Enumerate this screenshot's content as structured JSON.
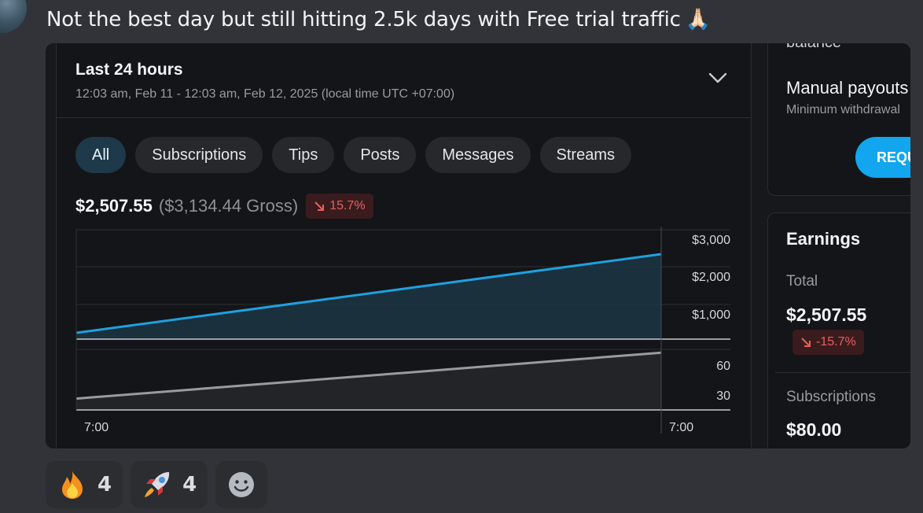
{
  "message": {
    "text": "Not the best day but still hitting 2.5k days with Free trial traffic",
    "emoji": "🙏🏻"
  },
  "earnings_panel": {
    "period_title": "Last 24 hours",
    "period_range": "12:03 am, Feb 11 - 12:03 am, Feb 12, 2025 (local time UTC +07:00)",
    "tabs": [
      {
        "label": "All",
        "active": true
      },
      {
        "label": "Subscriptions",
        "active": false
      },
      {
        "label": "Tips",
        "active": false
      },
      {
        "label": "Posts",
        "active": false
      },
      {
        "label": "Messages",
        "active": false
      },
      {
        "label": "Streams",
        "active": false
      }
    ],
    "net": "$2,507.55",
    "gross": "($3,134.44 Gross)",
    "change": "15.7%"
  },
  "chart_data": [
    {
      "type": "area",
      "series": [
        {
          "x": [
            "7:00",
            "7:00"
          ],
          "values": [
            180,
            2600
          ]
        }
      ],
      "y_ticks": [
        "$3,000",
        "$2,000",
        "$1,000"
      ],
      "ylim": [
        0,
        3000
      ],
      "color": "#1ea1e0"
    },
    {
      "type": "area",
      "series": [
        {
          "x": [
            "7:00",
            "7:00"
          ],
          "values": [
            18,
            91
          ]
        }
      ],
      "y_ticks": [
        "60",
        "30"
      ],
      "ylim": [
        0,
        100
      ],
      "color": "#9a9aa0"
    }
  ],
  "x_labels": [
    "7:00",
    "7:00"
  ],
  "sidebar": {
    "cut_text": "balance",
    "payout_title": "Manual payouts",
    "payout_sub": "Minimum withdrawal",
    "request_label": "REQUEST",
    "earnings_title": "Earnings",
    "total_label": "Total",
    "total_value": "$2,507.55",
    "total_change": "-15.7%",
    "subs_label": "Subscriptions",
    "subs_value": "$80.00"
  },
  "reactions": [
    {
      "icon": "fire-icon",
      "count": "4"
    },
    {
      "icon": "rocket-icon",
      "count": "4"
    },
    {
      "icon": "add-reaction-icon",
      "count": ""
    }
  ]
}
